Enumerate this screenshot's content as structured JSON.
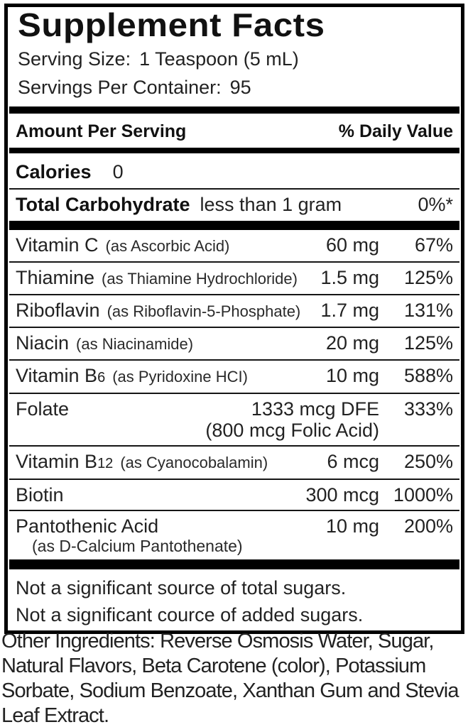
{
  "panel": {
    "title": "Supplement Facts",
    "serving_size_label": "Serving Size:",
    "serving_size_value": "1 Teaspoon (5 mL)",
    "servings_per_container_label": "Servings Per Container:",
    "servings_per_container_value": "95",
    "amount_per_serving_header": "Amount Per Serving",
    "daily_value_header": "% Daily Value",
    "calories_label": "Calories",
    "calories_value": "0",
    "carbohydrate_label": "Total Carbohydrate",
    "carbohydrate_amount": "less than 1 gram",
    "carbohydrate_dv": "0%*"
  },
  "nutrients": [
    {
      "name": "Vitamin C",
      "form": "(as Ascorbic Acid)",
      "amount": "60 mg",
      "dv": "67%"
    },
    {
      "name": "Thiamine",
      "form": "(as Thiamine Hydrochloride)",
      "amount": "1.5 mg",
      "dv": "125%"
    },
    {
      "name": "Riboflavin",
      "form": "(as Riboflavin-5-Phosphate)",
      "amount": "1.7 mg",
      "dv": "131%"
    },
    {
      "name": "Niacin",
      "form": "(as Niacinamide)",
      "amount": "20 mg",
      "dv": "125%"
    },
    {
      "name": "Vitamin B",
      "name_sub": "6",
      "form": "(as Pyridoxine HCI)",
      "amount": "10 mg",
      "dv": "588%"
    },
    {
      "name": "Folate",
      "amount": "1333 mcg DFE",
      "dv": "333%",
      "amount_note": "(800 mcg Folic Acid)"
    },
    {
      "name": "Vitamin B",
      "name_sub": "12",
      "form": "(as Cyanocobalamin)",
      "amount": "6 mcg",
      "dv": "250%"
    },
    {
      "name": "Biotin",
      "amount": "300 mcg",
      "dv": "1000%"
    },
    {
      "name": "Pantothenic Acid",
      "amount": "10 mg",
      "dv": "200%",
      "name_note": "(as D-Calcium Pantothenate)"
    }
  ],
  "footnotes": {
    "line1": "Not a significant source of total sugars.",
    "line2": "Not a significant cource of added sugars."
  },
  "other_ingredients": "Other Ingredients: Reverse Osmosis Water, Sugar, Natural Flavors, Beta Carotene (color), Potassium Sorbate, Sodium Benzoate, Xanthan Gum and Stevia Leaf Extract.",
  "colors": {
    "text": "#1b1b1b",
    "bar": "#000000",
    "background": "#ffffff"
  }
}
